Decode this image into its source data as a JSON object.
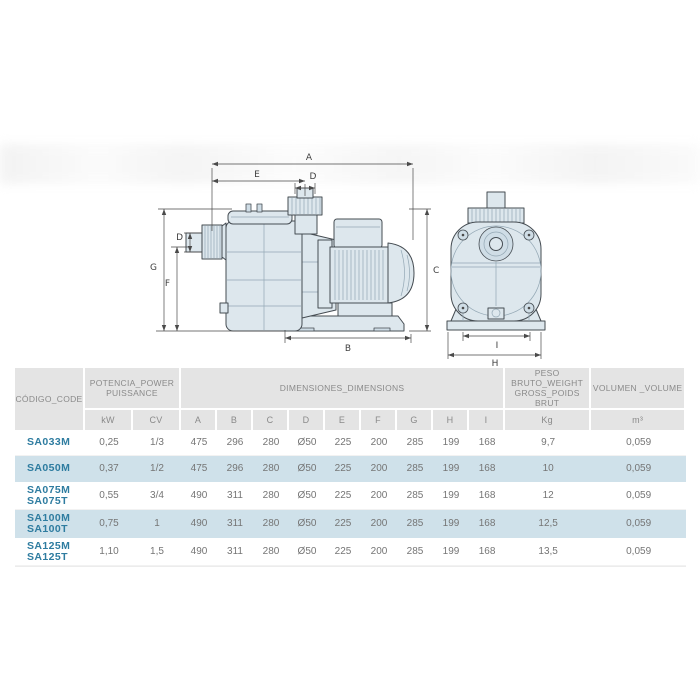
{
  "colors": {
    "accent_code": "#2e7ca0",
    "header_bg": "#e4e4e4",
    "header_text": "#8a8a8a",
    "cell_text": "#757575",
    "row_highlight": "#cfe1ea",
    "drawing_fill": "#dde7ed",
    "drawing_outline": "#454c52"
  },
  "drawing": {
    "description": "pool pump technical drawing, side view and front view with dimension lines",
    "labels": {
      "A": "A",
      "B": "B",
      "C": "C",
      "D_top": "D",
      "D_left": "D",
      "E": "E",
      "F": "F",
      "G": "G",
      "H": "H",
      "I": "I"
    }
  },
  "table": {
    "headers": {
      "code": "CÓDIGO_CODE",
      "power_line1": "POTENCIA_POWER",
      "power_line2": "PUISSANCE",
      "power_sub": [
        "kW",
        "CV"
      ],
      "dimensions": "DIMENSIONES_DIMENSIONS",
      "dimensions_sub": [
        "A",
        "B",
        "C",
        "D",
        "E",
        "F",
        "G",
        "H",
        "I"
      ],
      "weight_line1": "PESO BRUTO_WEIGHT",
      "weight_line2": "GROSS_POIDS BRUT",
      "weight_sub": "Kg",
      "volume": "VOLUMEN _VOLUME",
      "volume_sub": "m³"
    },
    "rows": [
      {
        "codes": [
          "SA033M"
        ],
        "highlight": false,
        "values": [
          "0,25",
          "1/3",
          "475",
          "296",
          "280",
          "Ø50",
          "225",
          "200",
          "285",
          "199",
          "168",
          "9,7",
          "0,059"
        ]
      },
      {
        "codes": [
          "SA050M"
        ],
        "highlight": true,
        "values": [
          "0,37",
          "1/2",
          "475",
          "296",
          "280",
          "Ø50",
          "225",
          "200",
          "285",
          "199",
          "168",
          "10",
          "0,059"
        ]
      },
      {
        "codes": [
          "SA075M",
          "SA075T"
        ],
        "highlight": false,
        "values": [
          "0,55",
          "3/4",
          "490",
          "311",
          "280",
          "Ø50",
          "225",
          "200",
          "285",
          "199",
          "168",
          "12",
          "0,059"
        ]
      },
      {
        "codes": [
          "SA100M",
          "SA100T"
        ],
        "highlight": true,
        "values": [
          "0,75",
          "1",
          "490",
          "311",
          "280",
          "Ø50",
          "225",
          "200",
          "285",
          "199",
          "168",
          "12,5",
          "0,059"
        ]
      },
      {
        "codes": [
          "SA125M",
          "SA125T"
        ],
        "highlight": false,
        "values": [
          "1,10",
          "1,5",
          "490",
          "311",
          "280",
          "Ø50",
          "225",
          "200",
          "285",
          "199",
          "168",
          "13,5",
          "0,059"
        ]
      }
    ]
  }
}
